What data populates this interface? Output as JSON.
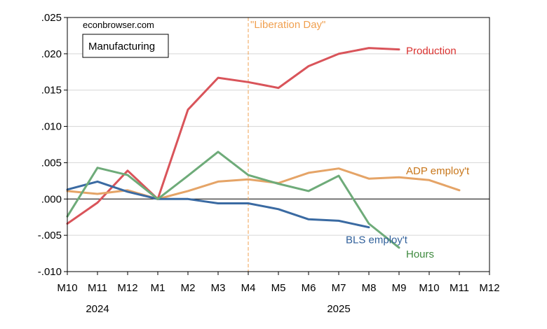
{
  "chart_data": {
    "type": "line",
    "title": "Manufacturing",
    "source": "econbrowser.com",
    "xlabel": "",
    "ylabel": "",
    "ylim": [
      -0.01,
      0.025
    ],
    "y_ticks": [
      ".025",
      ".020",
      ".015",
      ".010",
      ".005",
      ".000",
      "-.005",
      "-.010"
    ],
    "y_tick_values": [
      0.025,
      0.02,
      0.015,
      0.01,
      0.005,
      0.0,
      -0.005,
      -0.01
    ],
    "x_ticks": [
      "M10",
      "M11",
      "M12",
      "M1",
      "M2",
      "M3",
      "M4",
      "M5",
      "M6",
      "M7",
      "M8",
      "M9",
      "M10",
      "M11",
      "M12"
    ],
    "year_labels": [
      {
        "label": "2024",
        "index": 1
      },
      {
        "label": "2025",
        "index": 9
      }
    ],
    "zero_line": 0.0,
    "vline": {
      "label": "\"Liberation Day\"",
      "index": 6,
      "color": "#f0a050"
    },
    "series": [
      {
        "name": "Production",
        "color": "#d9545a",
        "values": [
          -0.0034,
          -0.0005,
          0.0039,
          0.0,
          0.0123,
          0.0167,
          0.0161,
          0.0153,
          0.0183,
          0.02,
          0.0208,
          0.0206,
          null,
          null,
          null
        ]
      },
      {
        "name": "ADP employ't",
        "color": "#e5a467",
        "values": [
          0.0011,
          0.0007,
          0.0012,
          0.0,
          0.0011,
          0.0024,
          0.0027,
          0.0022,
          0.0036,
          0.0042,
          0.0028,
          0.003,
          0.0026,
          0.0012,
          null
        ]
      },
      {
        "name": "BLS employ't",
        "color": "#3a6aa2",
        "values": [
          0.0013,
          0.0024,
          0.001,
          0.0,
          0.0,
          -0.0006,
          -0.0006,
          -0.0014,
          -0.0028,
          -0.003,
          -0.0039,
          null,
          null,
          null,
          null
        ]
      },
      {
        "name": "Hours",
        "color": "#6eab79",
        "values": [
          -0.0024,
          0.0043,
          0.0033,
          0.0,
          0.0032,
          0.0065,
          0.0033,
          0.0021,
          0.0011,
          0.0032,
          -0.0034,
          -0.0067,
          null,
          null,
          null
        ]
      }
    ],
    "series_labels": [
      {
        "name": "Production",
        "color": "#d9312f",
        "anchor_index": 11,
        "anchor_value": 0.0205
      },
      {
        "name": "ADP employ't",
        "color": "#c8761a",
        "anchor_index": 11,
        "anchor_value": 0.004
      },
      {
        "name": "BLS employ't",
        "color": "#2f5f9a",
        "anchor_index": 9,
        "anchor_value": -0.0055
      },
      {
        "name": "Hours",
        "color": "#3f8a3f",
        "anchor_index": 11,
        "anchor_value": -0.0075
      }
    ]
  }
}
